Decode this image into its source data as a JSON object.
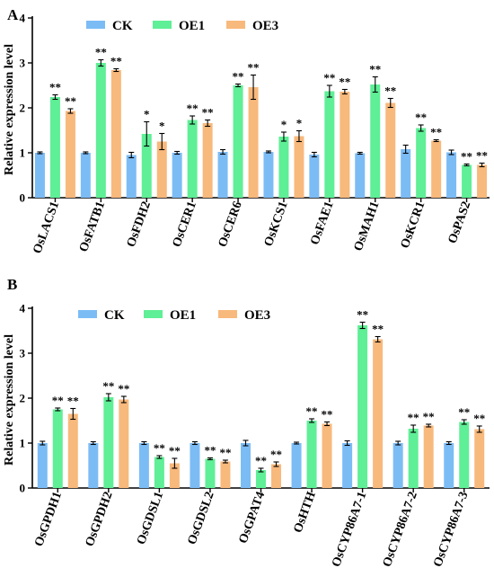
{
  "colors": {
    "CK": "#7cbcf5",
    "OE1": "#5fef96",
    "OE3": "#f8b97c"
  },
  "chart_data": [
    {
      "type": "bar",
      "panel": "A",
      "ylabel": "Relative expression level",
      "ylim": [
        0,
        4
      ],
      "yticks": [
        "0",
        "1",
        "2",
        "3",
        "4"
      ],
      "legend": [
        "CK",
        "OE1",
        "OE3"
      ],
      "categories": [
        "OsLACS1",
        "OsFATB1",
        "OsFDH2",
        "OsCER1",
        "OsCER6",
        "OsKCS1",
        "OsFAE1",
        "OsMAH1",
        "OsKCR1",
        "OsPAS2"
      ],
      "series": [
        {
          "name": "CK",
          "values": [
            1.0,
            1.0,
            0.95,
            1.0,
            1.02,
            1.02,
            0.96,
            0.99,
            1.08,
            1.01
          ],
          "errors": [
            0.02,
            0.02,
            0.06,
            0.03,
            0.05,
            0.02,
            0.05,
            0.02,
            0.09,
            0.05
          ]
        },
        {
          "name": "OE1",
          "values": [
            2.24,
            3.0,
            1.42,
            1.73,
            2.5,
            1.36,
            2.37,
            2.52,
            1.55,
            0.73
          ],
          "errors": [
            0.05,
            0.07,
            0.27,
            0.09,
            0.03,
            0.1,
            0.13,
            0.17,
            0.07,
            0.02
          ]
        },
        {
          "name": "OE3",
          "values": [
            1.93,
            2.84,
            1.25,
            1.66,
            2.46,
            1.37,
            2.36,
            2.11,
            1.27,
            0.73
          ],
          "errors": [
            0.05,
            0.03,
            0.18,
            0.07,
            0.27,
            0.12,
            0.05,
            0.1,
            0.02,
            0.04
          ]
        }
      ],
      "significance": [
        [
          "",
          "**",
          "**"
        ],
        [
          "",
          "**",
          "**"
        ],
        [
          "",
          "*",
          "*"
        ],
        [
          "",
          "**",
          "**"
        ],
        [
          "",
          "**",
          "**"
        ],
        [
          "",
          "*",
          "*"
        ],
        [
          "",
          "**",
          "**"
        ],
        [
          "",
          "**",
          "**"
        ],
        [
          "",
          "**",
          "**"
        ],
        [
          "",
          "**",
          "**"
        ]
      ]
    },
    {
      "type": "bar",
      "panel": "B",
      "ylabel": "Relative expression level",
      "ylim": [
        0,
        4
      ],
      "yticks": [
        "0",
        "1",
        "2",
        "3",
        "4"
      ],
      "legend": [
        "CK",
        "OE1",
        "OE3"
      ],
      "categories": [
        "OsGPDH1",
        "OsGPDH2",
        "OsGDSL1",
        "OsGDSL2",
        "OsGPAT4",
        "OsHTH",
        "OsCYP86A7-1",
        "OsCYP86A7-2",
        "OsCYP86A7-3"
      ],
      "series": [
        {
          "name": "CK",
          "values": [
            1.0,
            1.0,
            1.0,
            1.0,
            1.0,
            1.0,
            1.0,
            1.0,
            1.0
          ],
          "errors": [
            0.04,
            0.03,
            0.03,
            0.03,
            0.06,
            0.02,
            0.05,
            0.04,
            0.03
          ]
        },
        {
          "name": "OE1",
          "values": [
            1.75,
            2.02,
            0.69,
            0.65,
            0.4,
            1.5,
            3.62,
            1.32,
            1.47
          ],
          "errors": [
            0.03,
            0.08,
            0.03,
            0.02,
            0.04,
            0.04,
            0.07,
            0.08,
            0.05
          ]
        },
        {
          "name": "OE3",
          "values": [
            1.65,
            1.97,
            0.55,
            0.59,
            0.53,
            1.43,
            3.31,
            1.39,
            1.31
          ],
          "errors": [
            0.12,
            0.07,
            0.11,
            0.03,
            0.05,
            0.04,
            0.06,
            0.03,
            0.07
          ]
        }
      ],
      "significance": [
        [
          "",
          "**",
          "**"
        ],
        [
          "",
          "**",
          "**"
        ],
        [
          "",
          "**",
          "**"
        ],
        [
          "",
          "**",
          "**"
        ],
        [
          "",
          "**",
          "**"
        ],
        [
          "",
          "**",
          "**"
        ],
        [
          "",
          "**",
          "**"
        ],
        [
          "",
          "**",
          "**"
        ],
        [
          "",
          "**",
          "**"
        ]
      ]
    }
  ]
}
